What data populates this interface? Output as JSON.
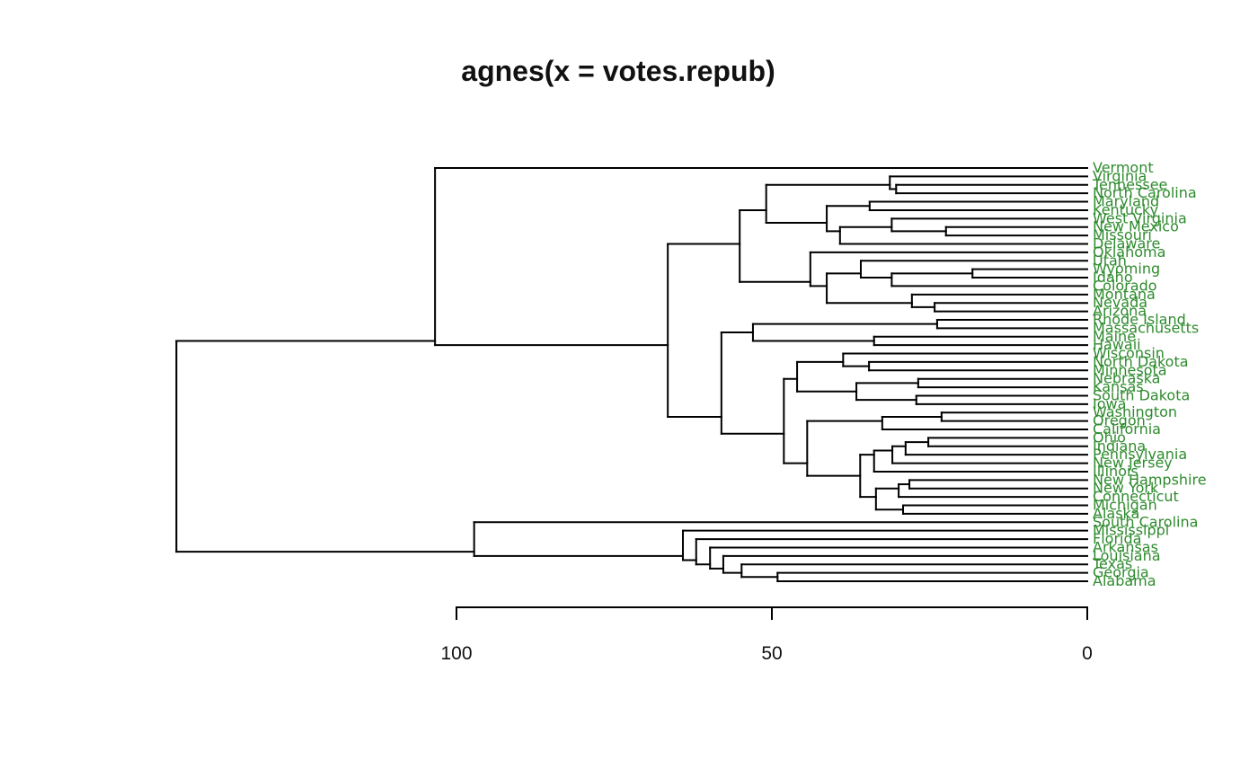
{
  "title": "agnes(x = votes.repub)",
  "chart_data": {
    "type": "dendrogram",
    "title": "agnes(x = votes.repub)",
    "orientation": "horizontal-right-leaves",
    "axis": {
      "ticks": [
        100,
        50,
        0
      ],
      "position": "bottom",
      "range": [
        0,
        100
      ]
    },
    "line_color": "#000000",
    "leaf_label_color": "#2e8b2e",
    "leaf_order": [
      "Vermont",
      "Virginia",
      "Tennessee",
      "North Carolina",
      "Maryland",
      "Kentucky",
      "West Virginia",
      "New Mexico",
      "Missouri",
      "Delaware",
      "Oklahoma",
      "Utah",
      "Wyoming",
      "Idaho",
      "Colorado",
      "Montana",
      "Nevada",
      "Arizona",
      "Rhode Island",
      "Massachusetts",
      "Maine",
      "Hawaii",
      "Wisconsin",
      "North Dakota",
      "Minnesota",
      "Nebraska",
      "Kansas",
      "South Dakota",
      "Iowa",
      "Washington",
      "Oregon",
      "California",
      "Ohio",
      "Indiana",
      "Pennsylvania",
      "New Jersey",
      "Illinois",
      "New Hampshire",
      "New York",
      "Connecticut",
      "Michigan",
      "Alaska",
      "South Carolina",
      "Mississippi",
      "Florida",
      "Arkansas",
      "Louisiana",
      "Texas",
      "Georgia",
      "Alabama"
    ],
    "root_height": 144.4,
    "tree": {
      "height": 144.4,
      "children": [
        {
          "height": 103.4,
          "children": [
            {
              "leaf": "Vermont"
            },
            {
              "height": 66.5,
              "children": [
                {
                  "height": 55.1,
                  "children": [
                    {
                      "height": 50.9,
                      "children": [
                        {
                          "height": 31.3,
                          "children": [
                            {
                              "leaf": "Virginia"
                            },
                            {
                              "height": 30.3,
                              "children": [
                                {
                                  "leaf": "Tennessee"
                                },
                                {
                                  "leaf": "North Carolina"
                                }
                              ]
                            }
                          ]
                        },
                        {
                          "height": 41.3,
                          "children": [
                            {
                              "height": 34.5,
                              "children": [
                                {
                                  "leaf": "Maryland"
                                },
                                {
                                  "leaf": "Kentucky"
                                }
                              ]
                            },
                            {
                              "height": 39.2,
                              "children": [
                                {
                                  "height": 31.0,
                                  "children": [
                                    {
                                      "leaf": "West Virginia"
                                    },
                                    {
                                      "height": 22.4,
                                      "children": [
                                        {
                                          "leaf": "New Mexico"
                                        },
                                        {
                                          "leaf": "Missouri"
                                        }
                                      ]
                                    }
                                  ]
                                },
                                {
                                  "leaf": "Delaware"
                                }
                              ]
                            }
                          ]
                        }
                      ]
                    },
                    {
                      "height": 43.9,
                      "children": [
                        {
                          "leaf": "Oklahoma"
                        },
                        {
                          "height": 41.3,
                          "children": [
                            {
                              "height": 35.9,
                              "children": [
                                {
                                  "leaf": "Utah"
                                },
                                {
                                  "height": 31.0,
                                  "children": [
                                    {
                                      "height": 18.2,
                                      "children": [
                                        {
                                          "leaf": "Wyoming"
                                        },
                                        {
                                          "leaf": "Idaho"
                                        }
                                      ]
                                    },
                                    {
                                      "leaf": "Colorado"
                                    }
                                  ]
                                }
                              ]
                            },
                            {
                              "height": 27.8,
                              "children": [
                                {
                                  "leaf": "Montana"
                                },
                                {
                                  "height": 24.2,
                                  "children": [
                                    {
                                      "leaf": "Nevada"
                                    },
                                    {
                                      "leaf": "Arizona"
                                    }
                                  ]
                                }
                              ]
                            }
                          ]
                        }
                      ]
                    }
                  ]
                },
                {
                  "height": 58.0,
                  "children": [
                    {
                      "height": 53.0,
                      "children": [
                        {
                          "height": 23.8,
                          "children": [
                            {
                              "leaf": "Rhode Island"
                            },
                            {
                              "leaf": "Massachusetts"
                            }
                          ]
                        },
                        {
                          "height": 33.8,
                          "children": [
                            {
                              "leaf": "Maine"
                            },
                            {
                              "leaf": "Hawaii"
                            }
                          ]
                        }
                      ]
                    },
                    {
                      "height": 48.1,
                      "children": [
                        {
                          "height": 46.0,
                          "children": [
                            {
                              "height": 38.7,
                              "children": [
                                {
                                  "leaf": "Wisconsin"
                                },
                                {
                                  "height": 34.6,
                                  "children": [
                                    {
                                      "leaf": "North Dakota"
                                    },
                                    {
                                      "leaf": "Minnesota"
                                    }
                                  ]
                                }
                              ]
                            },
                            {
                              "height": 36.6,
                              "children": [
                                {
                                  "height": 26.8,
                                  "children": [
                                    {
                                      "leaf": "Nebraska"
                                    },
                                    {
                                      "leaf": "Kansas"
                                    }
                                  ]
                                },
                                {
                                  "height": 27.1,
                                  "children": [
                                    {
                                      "leaf": "South Dakota"
                                    },
                                    {
                                      "leaf": "Iowa"
                                    }
                                  ]
                                }
                              ]
                            }
                          ]
                        },
                        {
                          "height": 44.4,
                          "children": [
                            {
                              "height": 32.5,
                              "children": [
                                {
                                  "height": 23.1,
                                  "children": [
                                    {
                                      "leaf": "Washington"
                                    },
                                    {
                                      "leaf": "Oregon"
                                    }
                                  ]
                                },
                                {
                                  "leaf": "California"
                                }
                              ]
                            },
                            {
                              "height": 36.0,
                              "children": [
                                {
                                  "height": 33.8,
                                  "children": [
                                    {
                                      "height": 30.9,
                                      "children": [
                                        {
                                          "height": 28.8,
                                          "children": [
                                            {
                                              "height": 25.2,
                                              "children": [
                                                {
                                                  "leaf": "Ohio"
                                                },
                                                {
                                                  "leaf": "Indiana"
                                                }
                                              ]
                                            },
                                            {
                                              "leaf": "Pennsylvania"
                                            }
                                          ]
                                        },
                                        {
                                          "leaf": "New Jersey"
                                        }
                                      ]
                                    },
                                    {
                                      "leaf": "Illinois"
                                    }
                                  ]
                                },
                                {
                                  "height": 33.5,
                                  "children": [
                                    {
                                      "height": 29.9,
                                      "children": [
                                        {
                                          "height": 28.2,
                                          "children": [
                                            {
                                              "leaf": "New Hampshire"
                                            },
                                            {
                                              "leaf": "New York"
                                            }
                                          ]
                                        },
                                        {
                                          "leaf": "Connecticut"
                                        }
                                      ]
                                    },
                                    {
                                      "height": 29.2,
                                      "children": [
                                        {
                                          "leaf": "Michigan"
                                        },
                                        {
                                          "leaf": "Alaska"
                                        }
                                      ]
                                    }
                                  ]
                                }
                              ]
                            }
                          ]
                        }
                      ]
                    }
                  ]
                }
              ]
            }
          ]
        },
        {
          "height": 97.2,
          "children": [
            {
              "leaf": "South Carolina"
            },
            {
              "height": 64.1,
              "children": [
                {
                  "leaf": "Mississippi"
                },
                {
                  "height": 62.0,
                  "children": [
                    {
                      "leaf": "Florida"
                    },
                    {
                      "height": 59.8,
                      "children": [
                        {
                          "leaf": "Arkansas"
                        },
                        {
                          "height": 57.7,
                          "children": [
                            {
                              "leaf": "Louisiana"
                            },
                            {
                              "height": 54.8,
                              "children": [
                                {
                                  "leaf": "Texas"
                                },
                                {
                                  "height": 49.1,
                                  "children": [
                                    {
                                      "leaf": "Georgia"
                                    },
                                    {
                                      "leaf": "Alabama"
                                    }
                                  ]
                                }
                              ]
                            }
                          ]
                        }
                      ]
                    }
                  ]
                }
              ]
            }
          ]
        }
      ]
    }
  }
}
